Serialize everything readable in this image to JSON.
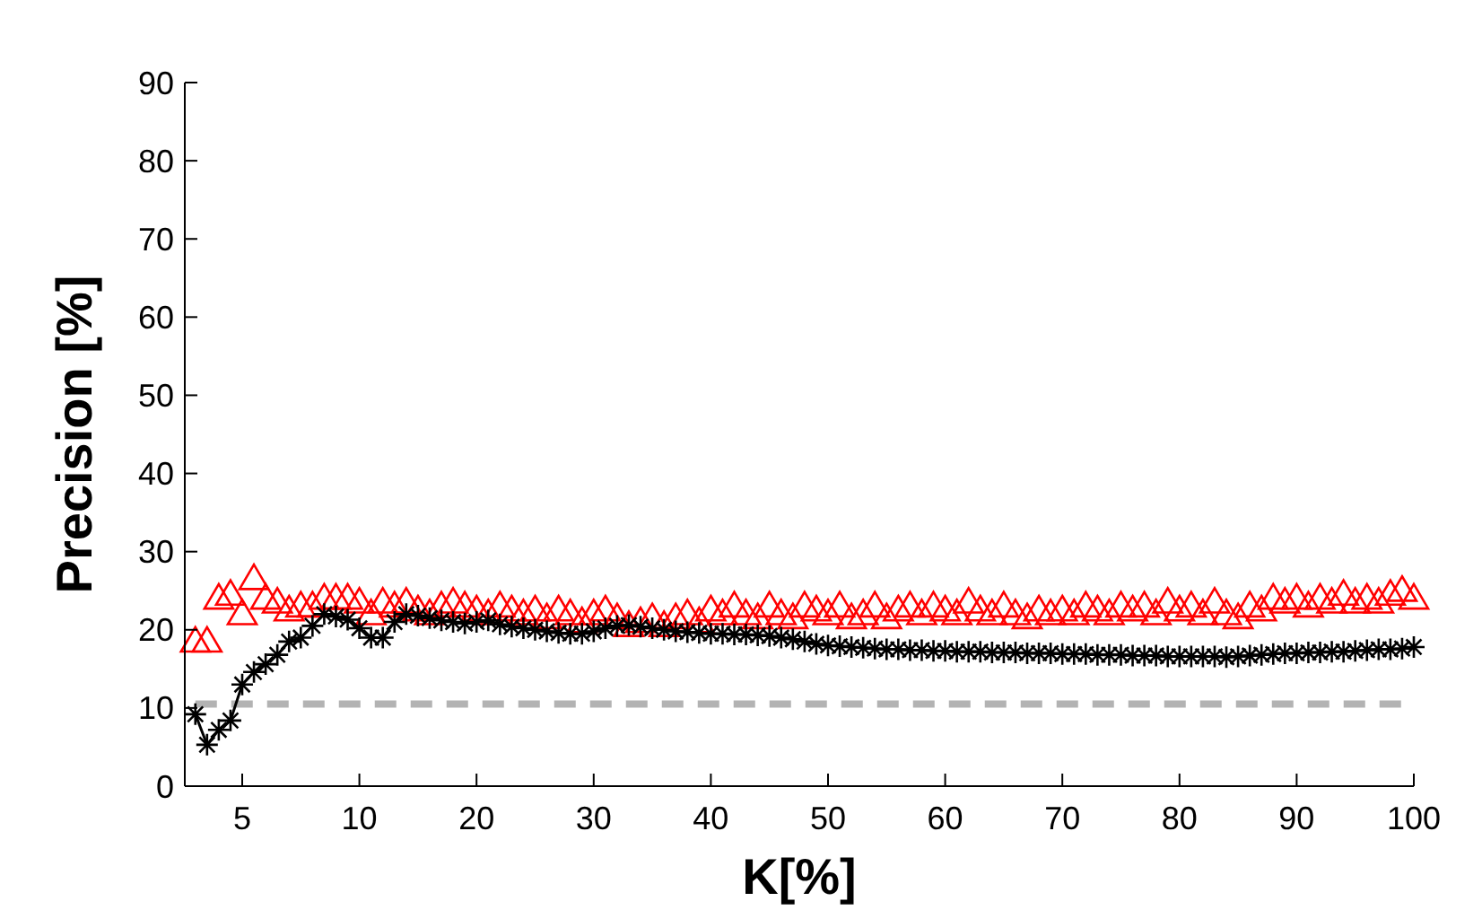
{
  "chart_data": {
    "type": "line",
    "xlabel": "K[%]",
    "ylabel": "Precision [%]",
    "categories": [
      null,
      null,
      null,
      null,
      "5",
      null,
      null,
      null,
      null,
      null,
      null,
      null,
      null,
      null,
      "10",
      null,
      null,
      null,
      null,
      null,
      null,
      null,
      null,
      null,
      "20",
      null,
      null,
      null,
      null,
      null,
      null,
      null,
      null,
      null,
      "30",
      null,
      null,
      null,
      null,
      null,
      null,
      null,
      null,
      null,
      "40",
      null,
      null,
      null,
      null,
      null,
      null,
      null,
      null,
      null,
      "50",
      null,
      null,
      null,
      null,
      null,
      null,
      null,
      null,
      null,
      "60",
      null,
      null,
      null,
      null,
      null,
      null,
      null,
      null,
      null,
      "70",
      null,
      null,
      null,
      null,
      null,
      null,
      null,
      null,
      null,
      "80",
      null,
      null,
      null,
      null,
      null,
      null,
      null,
      null,
      null,
      "90",
      null,
      null,
      null,
      null,
      null,
      null,
      null,
      null,
      null,
      "100"
    ],
    "ylim": [
      0,
      90
    ],
    "yticks": [
      0,
      10,
      20,
      30,
      40,
      50,
      60,
      70,
      80,
      90
    ],
    "grid": false,
    "series": [
      {
        "type": "scatter",
        "color": "#ff0000",
        "marker": "triangle",
        "values": [
          18.5,
          18.5,
          24,
          24.5,
          22,
          26.5,
          24,
          23.5,
          22.5,
          23,
          23,
          24,
          24,
          24,
          23.5,
          22,
          23.5,
          23,
          23.5,
          22.5,
          22,
          23,
          23.5,
          23,
          22.5,
          22,
          23,
          22.5,
          22,
          22.5,
          21.5,
          22.5,
          22,
          21,
          22,
          22.5,
          21.5,
          20.5,
          21,
          21.5,
          20.5,
          21.5,
          22,
          21,
          22.5,
          22,
          23,
          22,
          21.5,
          23,
          22,
          21.5,
          23,
          22.5,
          22,
          23,
          21.5,
          22,
          23,
          21.5,
          22.5,
          23,
          22,
          23,
          22.5,
          22,
          23.5,
          22.5,
          22,
          23,
          22,
          21.5,
          22.5,
          22,
          22.5,
          22,
          23,
          22.5,
          22,
          23,
          22.5,
          23,
          22,
          23.5,
          22.5,
          23,
          22,
          23.5,
          22,
          21.5,
          23,
          22.5,
          24,
          23.5,
          24,
          23,
          24,
          23.5,
          24.5,
          23.5,
          24,
          23.5,
          24.5,
          25,
          24
        ]
      },
      {
        "color": "#000000",
        "marker": "cross",
        "line_style": "solid",
        "values": [
          9.2,
          5.3,
          7.2,
          8.4,
          13,
          14.6,
          15.6,
          16.8,
          18.5,
          19,
          20.5,
          22,
          21.7,
          21.3,
          20.2,
          19,
          19,
          21,
          22,
          21.8,
          21.5,
          21.2,
          21,
          20.8,
          21,
          21.2,
          20.7,
          20.4,
          20.2,
          20,
          19.8,
          19.6,
          19.5,
          19.5,
          19.8,
          20.2,
          20.5,
          20.6,
          20.4,
          20.2,
          20,
          19.8,
          19.7,
          19.6,
          19.5,
          19.5,
          19.4,
          19.4,
          19.3,
          19.2,
          19,
          18.8,
          18.5,
          18.2,
          18,
          17.9,
          17.8,
          17.7,
          17.6,
          17.5,
          17.5,
          17.4,
          17.4,
          17.3,
          17.3,
          17.2,
          17.2,
          17.2,
          17.1,
          17.1,
          17.1,
          17,
          17,
          17,
          16.9,
          16.9,
          16.9,
          16.8,
          16.8,
          16.8,
          16.7,
          16.7,
          16.7,
          16.6,
          16.6,
          16.6,
          16.6,
          16.6,
          16.5,
          16.6,
          16.7,
          16.8,
          16.9,
          17,
          17,
          17.1,
          17.1,
          17.2,
          17.2,
          17.3,
          17.4,
          17.5,
          17.5,
          17.6,
          17.8
        ]
      }
    ],
    "ref_lines": [
      {
        "axis": "y",
        "value": 10.5,
        "color": "#b3b3b3",
        "line_style": "dashed"
      }
    ]
  }
}
